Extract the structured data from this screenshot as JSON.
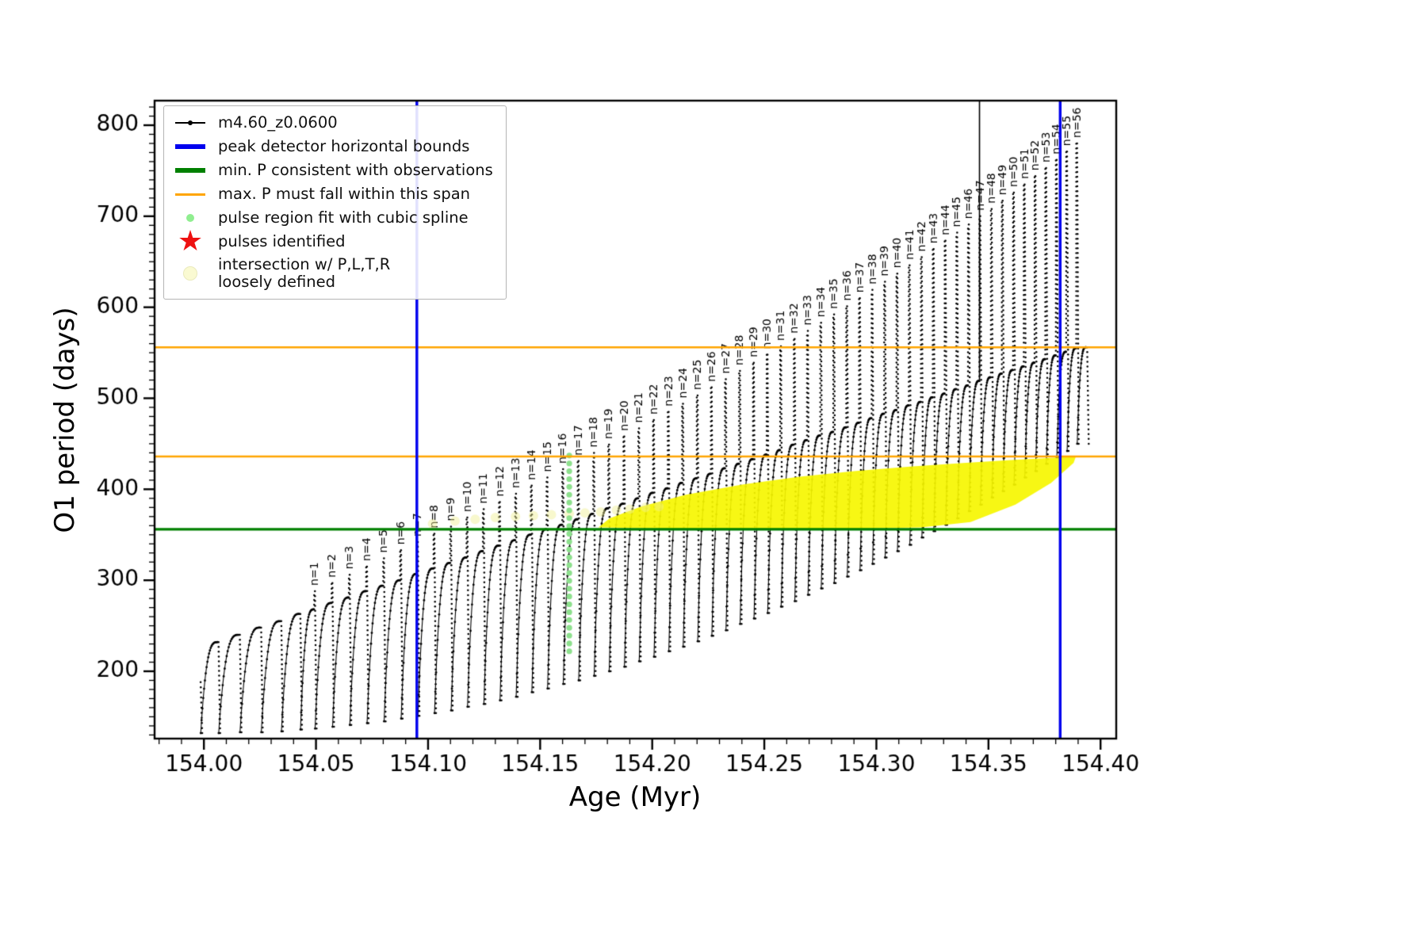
{
  "legend": {
    "entries": [
      {
        "label": "m4.60_z0.0600",
        "marker": "line-dot",
        "color": "#000000"
      },
      {
        "label": "peak detector horizontal bounds",
        "marker": "thick-line",
        "color": "#0000ee"
      },
      {
        "label": "min. P consistent with observations",
        "marker": "thick-line",
        "color": "#008000"
      },
      {
        "label": "max. P must fall within this span",
        "marker": "line",
        "color": "#ffa500"
      },
      {
        "label": "pulse region fit with cubic spline",
        "marker": "dot",
        "color": "#90ee90"
      },
      {
        "label": "pulses identified",
        "marker": "star",
        "color": "#ee1111"
      },
      {
        "label": "intersection w/ P,L,T,R\nloosely defined",
        "marker": "dot-large",
        "color": "#fafad2"
      }
    ]
  },
  "chart_data": {
    "type": "line",
    "series_name": "m4.60_z0.0600",
    "xlabel": "Age (Myr)",
    "ylabel": "O1 period (days)",
    "xlim": [
      153.978,
      154.407
    ],
    "ylim": [
      126,
      827
    ],
    "xticks": {
      "values": [
        154.0,
        154.05,
        154.1,
        154.15,
        154.2,
        154.25,
        154.3,
        154.35,
        154.4
      ],
      "labels": [
        "154.00",
        "154.05",
        "154.10",
        "154.15",
        "154.20",
        "154.25",
        "154.30",
        "154.35",
        "154.40"
      ],
      "minor_step": 0.01
    },
    "yticks": {
      "values": [
        200,
        300,
        400,
        500,
        600,
        700,
        800
      ],
      "labels": [
        "200",
        "300",
        "400",
        "500",
        "600",
        "700",
        "800"
      ],
      "minor_step": 10
    },
    "curve_color": "#000000",
    "pulse_label_prefix": "n=",
    "pulses": [
      {
        "n": 0,
        "x": 153.998,
        "shoulder": 188,
        "peak": 188,
        "dip": 132
      },
      {
        "n": 0,
        "x": 154.006,
        "shoulder": 232,
        "peak": 232,
        "dip": 132
      },
      {
        "n": 0,
        "x": 154.0155,
        "shoulder": 240,
        "peak": 240,
        "dip": 133
      },
      {
        "n": 0,
        "x": 154.025,
        "shoulder": 248,
        "peak": 248,
        "dip": 133
      },
      {
        "n": 0,
        "x": 154.034,
        "shoulder": 255,
        "peak": 255,
        "dip": 134
      },
      {
        "n": 0,
        "x": 154.0425,
        "shoulder": 263,
        "peak": 263,
        "dip": 136
      },
      {
        "n": 1,
        "x": 154.049,
        "shoulder": 268,
        "peak": 288,
        "dip": 137
      },
      {
        "n": 2,
        "x": 154.0568,
        "shoulder": 275,
        "peak": 297,
        "dip": 139
      },
      {
        "n": 3,
        "x": 154.0645,
        "shoulder": 281,
        "peak": 306,
        "dip": 141
      },
      {
        "n": 4,
        "x": 154.0722,
        "shoulder": 288,
        "peak": 315,
        "dip": 143
      },
      {
        "n": 5,
        "x": 154.0798,
        "shoulder": 294,
        "peak": 324,
        "dip": 145
      },
      {
        "n": 6,
        "x": 154.0874,
        "shoulder": 300,
        "peak": 333,
        "dip": 148
      },
      {
        "n": 7,
        "x": 154.0949,
        "shoulder": 307,
        "peak": 342,
        "dip": 151
      },
      {
        "n": 8,
        "x": 154.1023,
        "shoulder": 313,
        "peak": 351,
        "dip": 154
      },
      {
        "n": 9,
        "x": 154.1097,
        "shoulder": 319,
        "peak": 359,
        "dip": 157
      },
      {
        "n": 10,
        "x": 154.117,
        "shoulder": 325,
        "peak": 369,
        "dip": 161
      },
      {
        "n": 11,
        "x": 154.1243,
        "shoulder": 332,
        "peak": 378,
        "dip": 164
      },
      {
        "n": 12,
        "x": 154.1315,
        "shoulder": 338,
        "peak": 386,
        "dip": 168
      },
      {
        "n": 13,
        "x": 154.1387,
        "shoulder": 344,
        "peak": 395,
        "dip": 172
      },
      {
        "n": 14,
        "x": 154.1457,
        "shoulder": 350,
        "peak": 404,
        "dip": 177
      },
      {
        "n": 15,
        "x": 154.1527,
        "shoulder": 356,
        "peak": 413,
        "dip": 181
      },
      {
        "n": 16,
        "x": 154.1597,
        "shoulder": 361,
        "peak": 422,
        "dip": 186
      },
      {
        "n": 17,
        "x": 154.1666,
        "shoulder": 367,
        "peak": 431,
        "dip": 190
      },
      {
        "n": 18,
        "x": 154.1735,
        "shoulder": 373,
        "peak": 440,
        "dip": 195
      },
      {
        "n": 19,
        "x": 154.1802,
        "shoulder": 379,
        "peak": 449,
        "dip": 200
      },
      {
        "n": 20,
        "x": 154.187,
        "shoulder": 384,
        "peak": 458,
        "dip": 205
      },
      {
        "n": 21,
        "x": 154.1936,
        "shoulder": 390,
        "peak": 467,
        "dip": 211
      },
      {
        "n": 22,
        "x": 154.2002,
        "shoulder": 396,
        "peak": 476,
        "dip": 216
      },
      {
        "n": 23,
        "x": 154.2068,
        "shoulder": 401,
        "peak": 485,
        "dip": 222
      },
      {
        "n": 24,
        "x": 154.2132,
        "shoulder": 407,
        "peak": 494,
        "dip": 227
      },
      {
        "n": 25,
        "x": 154.2197,
        "shoulder": 412,
        "peak": 503,
        "dip": 233
      },
      {
        "n": 26,
        "x": 154.226,
        "shoulder": 417,
        "peak": 512,
        "dip": 239
      },
      {
        "n": 27,
        "x": 154.2323,
        "shoulder": 423,
        "peak": 521,
        "dip": 245
      },
      {
        "n": 28,
        "x": 154.2386,
        "shoulder": 428,
        "peak": 530,
        "dip": 252
      },
      {
        "n": 29,
        "x": 154.2448,
        "shoulder": 433,
        "peak": 539,
        "dip": 258
      },
      {
        "n": 30,
        "x": 154.2509,
        "shoulder": 438,
        "peak": 548,
        "dip": 264
      },
      {
        "n": 31,
        "x": 154.2569,
        "shoulder": 443,
        "peak": 557,
        "dip": 271
      },
      {
        "n": 32,
        "x": 154.263,
        "shoulder": 449,
        "peak": 565,
        "dip": 277
      },
      {
        "n": 33,
        "x": 154.2689,
        "shoulder": 454,
        "peak": 574,
        "dip": 284
      },
      {
        "n": 34,
        "x": 154.2748,
        "shoulder": 459,
        "peak": 583,
        "dip": 291
      },
      {
        "n": 35,
        "x": 154.2806,
        "shoulder": 463,
        "peak": 592,
        "dip": 297
      },
      {
        "n": 36,
        "x": 154.2864,
        "shoulder": 468,
        "peak": 601,
        "dip": 304
      },
      {
        "n": 37,
        "x": 154.2921,
        "shoulder": 473,
        "peak": 610,
        "dip": 311
      },
      {
        "n": 38,
        "x": 154.2977,
        "shoulder": 478,
        "peak": 619,
        "dip": 318
      },
      {
        "n": 39,
        "x": 154.3033,
        "shoulder": 483,
        "peak": 628,
        "dip": 325
      },
      {
        "n": 40,
        "x": 154.3088,
        "shoulder": 487,
        "peak": 637,
        "dip": 332
      },
      {
        "n": 41,
        "x": 154.3143,
        "shoulder": 492,
        "peak": 646,
        "dip": 339
      },
      {
        "n": 42,
        "x": 154.3197,
        "shoulder": 496,
        "peak": 655,
        "dip": 347
      },
      {
        "n": 43,
        "x": 154.325,
        "shoulder": 501,
        "peak": 664,
        "dip": 354
      },
      {
        "n": 44,
        "x": 154.3303,
        "shoulder": 505,
        "peak": 673,
        "dip": 361
      },
      {
        "n": 45,
        "x": 154.3355,
        "shoulder": 510,
        "peak": 682,
        "dip": 368
      },
      {
        "n": 46,
        "x": 154.3407,
        "shoulder": 514,
        "peak": 691,
        "dip": 376
      },
      {
        "n": 47,
        "x": 154.3458,
        "shoulder": 519,
        "peak": 700,
        "dip": 383
      },
      {
        "n": 48,
        "x": 154.3509,
        "shoulder": 523,
        "peak": 708,
        "dip": 391
      },
      {
        "n": 49,
        "x": 154.3558,
        "shoulder": 527,
        "peak": 717,
        "dip": 398
      },
      {
        "n": 50,
        "x": 154.3608,
        "shoulder": 531,
        "peak": 726,
        "dip": 405
      },
      {
        "n": 51,
        "x": 154.3656,
        "shoulder": 535,
        "peak": 735,
        "dip": 413
      },
      {
        "n": 52,
        "x": 154.3704,
        "shoulder": 539,
        "peak": 744,
        "dip": 420
      },
      {
        "n": 53,
        "x": 154.3752,
        "shoulder": 543,
        "peak": 753,
        "dip": 428
      },
      {
        "n": 54,
        "x": 154.3799,
        "shoulder": 547,
        "peak": 762,
        "dip": 435
      },
      {
        "n": 55,
        "x": 154.3845,
        "shoulder": 551,
        "peak": 771,
        "dip": 442
      },
      {
        "n": 56,
        "x": 154.389,
        "shoulder": 555,
        "peak": 780,
        "dip": 450
      },
      {
        "n": 0,
        "x": 154.3935,
        "shoulder": 556,
        "peak": 556,
        "dip": 450
      }
    ],
    "vlines": [
      {
        "x": 154.095,
        "color": "#0000ee",
        "width": 3.4,
        "name": "peak detector left bound"
      },
      {
        "x": 154.382,
        "color": "#0000ee",
        "width": 3.4,
        "name": "peak detector right bound"
      }
    ],
    "hlines": [
      {
        "y": 356,
        "color": "#008000",
        "width": 3.4,
        "name": "min. P consistent with observations"
      },
      {
        "y": 436,
        "color": "#ffa500",
        "width": 2.4,
        "name": "max. P span lower"
      },
      {
        "y": 556,
        "color": "#ffa500",
        "width": 2.4,
        "name": "max. P span upper"
      }
    ],
    "offscale_spike": {
      "x": 154.346,
      "y_bottom": 520
    },
    "spline_column": {
      "x": 154.163,
      "y_min": 222,
      "y_max": 437,
      "count": 26,
      "color": "#8de08d"
    },
    "intersection_region": {
      "color": "#f6f600",
      "alpha": 0.92,
      "polygon": [
        [
          154.176,
          358
        ],
        [
          154.21,
          356.5
        ],
        [
          154.25,
          356
        ],
        [
          154.29,
          356.5
        ],
        [
          154.32,
          358
        ],
        [
          154.342,
          364
        ],
        [
          154.362,
          383
        ],
        [
          154.378,
          407
        ],
        [
          154.388,
          429
        ],
        [
          154.389,
          436
        ],
        [
          154.378,
          434.5
        ],
        [
          154.36,
          432
        ],
        [
          154.34,
          429
        ],
        [
          154.315,
          425
        ],
        [
          154.29,
          420
        ],
        [
          154.265,
          413.5
        ],
        [
          154.24,
          405
        ],
        [
          154.215,
          394
        ],
        [
          154.195,
          381
        ],
        [
          154.181,
          368
        ]
      ]
    },
    "faint_dots": {
      "color": "#f0f090",
      "alpha": 0.45,
      "radius": 6,
      "points": [
        [
          154.102,
          362
        ],
        [
          154.112,
          365
        ],
        [
          154.121,
          367
        ],
        [
          154.13,
          369
        ],
        [
          154.139,
          370
        ],
        [
          154.147,
          371
        ],
        [
          154.155,
          372
        ],
        [
          154.163,
          373
        ],
        [
          154.17,
          374
        ],
        [
          154.177,
          375
        ],
        [
          154.184,
          377
        ],
        [
          154.19,
          378
        ],
        [
          154.197,
          380
        ],
        [
          154.203,
          381
        ]
      ]
    }
  }
}
